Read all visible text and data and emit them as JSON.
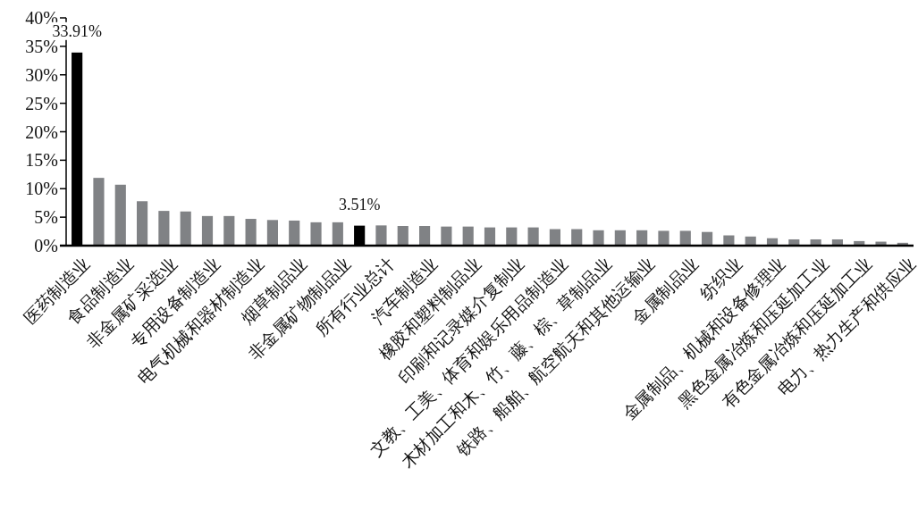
{
  "chart_data": {
    "type": "bar",
    "categories": [
      "医药制造业",
      null,
      "食品制造业",
      null,
      "非金属矿采选业",
      null,
      "专用设备制造业",
      null,
      "电气机械和器材制造业",
      null,
      "烟草制品业",
      null,
      "非金属矿物制品业",
      null,
      "所有行业总计",
      null,
      "汽车制造业",
      null,
      "橡胶和塑料制品业",
      null,
      "印刷和记录媒介复制业",
      null,
      "文教、工美、体育和娱乐用品制造业",
      null,
      "木材加工和木、竹、藤、棕、草制品业",
      null,
      "铁路、船舶、航空航天和其他运输业",
      null,
      "金属制品业",
      null,
      "纺织业",
      null,
      "金属制品、机械和设备修理业",
      null,
      "黑色金属冶炼和压延加工业",
      null,
      "有色金属冶炼和压延加工业",
      null,
      "电力、热力生产和供应业"
    ],
    "values": [
      33.91,
      11.9,
      10.7,
      7.8,
      6.1,
      6.0,
      5.2,
      5.2,
      4.7,
      4.5,
      4.4,
      4.1,
      4.1,
      3.51,
      3.55,
      3.45,
      3.45,
      3.35,
      3.35,
      3.2,
      3.2,
      3.2,
      2.9,
      2.9,
      2.7,
      2.7,
      2.7,
      2.6,
      2.6,
      2.4,
      1.8,
      1.6,
      1.3,
      1.1,
      1.1,
      1.1,
      0.8,
      0.7,
      0.5
    ],
    "colors": [
      "#000000",
      "#808285",
      "#808285",
      "#808285",
      "#808285",
      "#808285",
      "#808285",
      "#808285",
      "#808285",
      "#808285",
      "#808285",
      "#808285",
      "#808285",
      "#000000",
      "#808285",
      "#808285",
      "#808285",
      "#808285",
      "#808285",
      "#808285",
      "#808285",
      "#808285",
      "#808285",
      "#808285",
      "#808285",
      "#808285",
      "#808285",
      "#808285",
      "#808285",
      "#808285",
      "#808285",
      "#808285",
      "#808285",
      "#808285",
      "#808285",
      "#808285",
      "#808285",
      "#808285",
      "#808285"
    ],
    "value_labels": [
      "33.91%",
      null,
      null,
      null,
      null,
      null,
      null,
      null,
      null,
      null,
      null,
      null,
      null,
      "3.51%",
      null,
      null,
      null,
      null,
      null,
      null,
      null,
      null,
      null,
      null,
      null,
      null,
      null,
      null,
      null,
      null,
      null,
      null,
      null,
      null,
      null,
      null,
      null,
      null,
      null
    ],
    "ylim": [
      0,
      40
    ],
    "yticks": [
      {
        "value": 0,
        "label": "0%"
      },
      {
        "value": 5,
        "label": "5%"
      },
      {
        "value": 10,
        "label": "10%"
      },
      {
        "value": 15,
        "label": "15%"
      },
      {
        "value": 20,
        "label": "20%"
      },
      {
        "value": 25,
        "label": "25%"
      },
      {
        "value": 30,
        "label": "30%"
      },
      {
        "value": 35,
        "label": "35%"
      },
      {
        "value": 40,
        "label": "40%"
      }
    ],
    "grid": false
  }
}
